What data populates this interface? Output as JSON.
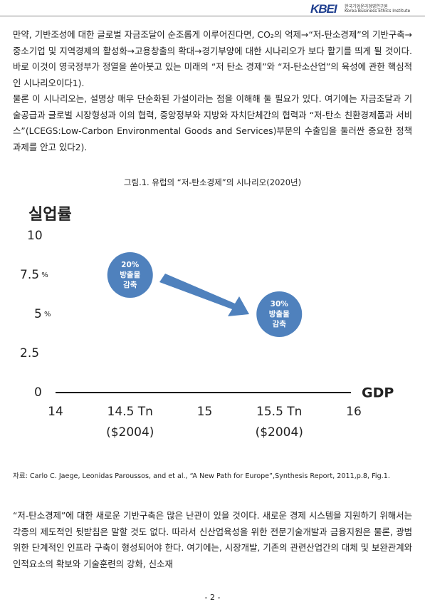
{
  "header": {
    "logo": "KBEI",
    "org_korean": "한국기업윤리경영연구원",
    "org_english": "Korea Business Ethics Institute"
  },
  "paragraphs_top": [
    "만약, 기반조성에 대한 글로벌 자금조달이 순조롭게 이루어진다면, CO₂의 억제→“저-탄소경제”의 기반구축→중소기업 및 지역경제의 활성화→고용창출의 확대→경기부양에 대한 시나리오가 보다 활기를 띄게 될 것이다. 바로 이것이 영국정부가 정열을 쏟아붓고 있는 미래의 “저 탄소 경제”와 “저-탄소산업”의 육성에 관한 핵심적인 시나리오이다1).",
    "물론 이 시나리오는, 설명상 매우 단순화된 가설이라는 점을 이해해 둘 필요가 있다. 여기에는 자금조달과 기술공급과 글로벌 시장형성과 이의 협력, 중앙정부와 지방와 자치단체간의 협력과 “저-탄소 친환경제품과 서비스”(LCEGS:Low-Carbon Environmental Goods and Services)부문의 수출입을 둘러싼 중요한 정책과제를 안고 있다2)."
  ],
  "chart_data": {
    "type": "scatter",
    "title": "그림.1. 유럽의 “저-탄소경제”의 시나리오(2020년)",
    "y_label": "실업률",
    "x_label": "GDP",
    "x": [
      14.5,
      15.5
    ],
    "series": [
      {
        "color": "#4f81bd",
        "values": [
          7.5,
          5
        ],
        "labels": [
          "20%\n방출물\n감축",
          "30%\n방출물\n감축"
        ]
      }
    ],
    "xlim": [
      14,
      16
    ],
    "ylim": [
      0,
      10
    ],
    "xticks": [
      14,
      {
        "value": 14.5,
        "label": "14.5 Tn\n($2004)"
      },
      15,
      {
        "value": 15.5,
        "label": "15.5 Tn\n($2004)"
      },
      16
    ],
    "yticks": [
      0,
      2.5,
      {
        "value": 5,
        "label": "5 %"
      },
      {
        "value": 7.5,
        "label": "7.5 %"
      },
      10
    ],
    "grid": false
  },
  "source": "자료: Carlo C. Jaege, Leonidas Paroussos, and et al., “A New  Path for Europe”,Synthesis Report, 2011,p.8, Fig.1.",
  "paragraphs_bottom": [
    "“저-탄소경제”에 대한 새로운 기반구축은 많은 난관이 있을 것이다. 새로운 경제 시스템을 지원하기 위해서는 각종의 제도적인 뒷받침은 말할 것도 없다. 따라서 신산업육성을 위한 전문기술개발과 금융지원은 물론, 광범위한 단계적인 인프라 구축이 형성되어야 한다. 여기에는, 시장개발, 기존의 관련산업간의 대체 및 보완관계와 인적요소의 확보와 기술훈련의 강화, 신소재"
  ],
  "page_number": "- 2 -"
}
